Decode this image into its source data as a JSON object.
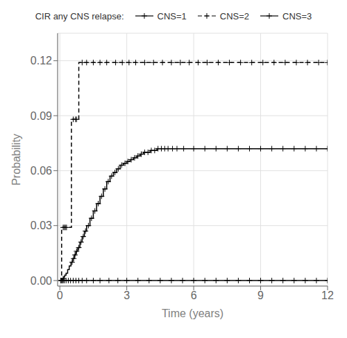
{
  "chart_data": {
    "type": "step",
    "title": "CIR  any CNS relapse:",
    "xlabel": "Time (years)",
    "ylabel": "Probability",
    "xlim": [
      -0.1,
      12
    ],
    "ylim": [
      -0.003,
      0.135
    ],
    "xticks": [
      0,
      3,
      6,
      9,
      12
    ],
    "yticks": [
      {
        "value": 0,
        "label": "0.00"
      },
      0.03,
      0.06,
      0.09,
      0.12
    ],
    "grid": true,
    "legend": "top",
    "series": [
      {
        "name": "CNS=1",
        "color": "#000000",
        "line_style": "solid",
        "marker": "plus",
        "x": [
          0,
          0.08,
          0.12,
          0.18,
          0.22,
          0.28,
          0.35,
          0.42,
          0.5,
          0.58,
          0.65,
          0.72,
          0.8,
          0.9,
          1.0,
          1.1,
          1.2,
          1.35,
          1.5,
          1.65,
          1.8,
          1.95,
          2.1,
          2.25,
          2.4,
          2.55,
          2.7,
          2.85,
          3.0,
          3.15,
          3.3,
          3.45,
          3.6,
          3.75,
          3.9,
          4.05,
          4.2,
          4.35,
          4.5,
          4.65,
          4.8,
          5.0,
          5.2,
          5.5,
          6.0,
          7.0,
          8.0,
          9.0,
          10.0,
          11.0,
          12.0
        ],
        "values": [
          0.0,
          0.0,
          0.001,
          0.002,
          0.003,
          0.004,
          0.006,
          0.008,
          0.01,
          0.012,
          0.014,
          0.016,
          0.018,
          0.021,
          0.024,
          0.027,
          0.03,
          0.034,
          0.038,
          0.042,
          0.046,
          0.05,
          0.054,
          0.057,
          0.059,
          0.061,
          0.063,
          0.064,
          0.065,
          0.066,
          0.067,
          0.068,
          0.069,
          0.07,
          0.07,
          0.071,
          0.071,
          0.072,
          0.072,
          0.072,
          0.072,
          0.072,
          0.072,
          0.072,
          0.072,
          0.072,
          0.072,
          0.072,
          0.072,
          0.072,
          0.072
        ],
        "censor_x": [
          0.05,
          0.1,
          0.15,
          0.55,
          0.62,
          0.68,
          0.75,
          0.85,
          0.95,
          1.05,
          1.15,
          1.28,
          1.42,
          1.57,
          1.72,
          1.87,
          2.02,
          2.17,
          2.32,
          2.47,
          2.62,
          2.77,
          2.92,
          3.05,
          3.2,
          3.35,
          3.5,
          3.65,
          3.8,
          3.95,
          4.1,
          4.25,
          4.4,
          4.55,
          4.7,
          4.85,
          5.05,
          5.25,
          5.55,
          6.0,
          6.5,
          7.0,
          7.5,
          8.0,
          8.5,
          9.0,
          9.5,
          10.0,
          10.5,
          11.0,
          11.5,
          12.0
        ],
        "censor_values": [
          0.0,
          0.0,
          0.001,
          0.01,
          0.012,
          0.014,
          0.016,
          0.018,
          0.021,
          0.024,
          0.027,
          0.03,
          0.034,
          0.038,
          0.042,
          0.046,
          0.05,
          0.054,
          0.057,
          0.059,
          0.061,
          0.063,
          0.064,
          0.065,
          0.066,
          0.067,
          0.068,
          0.069,
          0.07,
          0.07,
          0.071,
          0.071,
          0.072,
          0.072,
          0.072,
          0.072,
          0.072,
          0.072,
          0.072,
          0.072,
          0.072,
          0.072,
          0.072,
          0.072,
          0.072,
          0.072,
          0.072,
          0.072,
          0.072,
          0.072,
          0.072,
          0.072
        ]
      },
      {
        "name": "CNS=2",
        "color": "#000000",
        "line_style": "dashed",
        "marker": "plus",
        "x": [
          0,
          0.08,
          0.35,
          0.52,
          0.85,
          12.0
        ],
        "values": [
          0.0,
          0.029,
          0.029,
          0.088,
          0.119,
          0.119
        ],
        "censor_x": [
          0.15,
          0.2,
          0.25,
          0.3,
          0.6,
          0.7,
          0.75,
          1.0,
          1.2,
          1.5,
          1.8,
          2.1,
          2.5,
          2.8,
          3.1,
          3.4,
          3.8,
          4.2,
          4.6,
          5.0,
          5.4,
          5.8,
          6.2,
          6.6,
          7.1,
          7.6,
          8.1,
          8.6,
          9.1,
          9.6,
          10.1,
          10.6,
          11.1,
          11.6,
          12.0
        ],
        "censor_values": [
          0.029,
          0.029,
          0.029,
          0.029,
          0.088,
          0.088,
          0.088,
          0.119,
          0.119,
          0.119,
          0.119,
          0.119,
          0.119,
          0.119,
          0.119,
          0.119,
          0.119,
          0.119,
          0.119,
          0.119,
          0.119,
          0.119,
          0.119,
          0.119,
          0.119,
          0.119,
          0.119,
          0.119,
          0.119,
          0.119,
          0.119,
          0.119,
          0.119,
          0.119,
          0.119
        ]
      },
      {
        "name": "CNS=3",
        "color": "#000000",
        "line_style": "solid",
        "marker": "plus",
        "x": [
          0,
          12.0
        ],
        "values": [
          0.0,
          0.0
        ],
        "censor_x": [
          0.05,
          0.1,
          0.15,
          0.2,
          0.28,
          0.38,
          0.48,
          0.6,
          0.72,
          0.85,
          1.0,
          1.2,
          1.5,
          1.8,
          2.2,
          2.6,
          3.0,
          3.5,
          4.0,
          4.5,
          5.0,
          5.5,
          6.0,
          6.5,
          7.0,
          7.5,
          8.0,
          8.5,
          9.0,
          9.5,
          10.0,
          10.5,
          11.0,
          11.5,
          12.0
        ],
        "censor_values": [
          0.0,
          0.0,
          0.0,
          0.0,
          0.0,
          0.0,
          0.0,
          0.0,
          0.0,
          0.0,
          0.0,
          0.0,
          0.0,
          0.0,
          0.0,
          0.0,
          0.0,
          0.0,
          0.0,
          0.0,
          0.0,
          0.0,
          0.0,
          0.0,
          0.0,
          0.0,
          0.0,
          0.0,
          0.0,
          0.0,
          0.0,
          0.0,
          0.0,
          0.0,
          0.0
        ]
      }
    ]
  }
}
